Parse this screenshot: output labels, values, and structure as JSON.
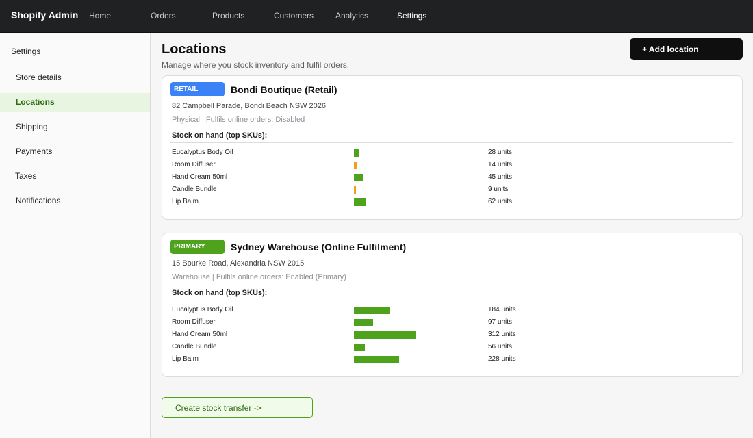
{
  "app": {
    "brand": "Shopify Admin"
  },
  "nav": [
    {
      "label": "Home",
      "active": false
    },
    {
      "label": "Orders",
      "active": false
    },
    {
      "label": "Products",
      "active": false
    },
    {
      "label": "Customers",
      "active": false
    },
    {
      "label": "Analytics",
      "active": false
    },
    {
      "label": "Settings",
      "active": true
    }
  ],
  "sidebar": {
    "heading": "Settings",
    "items": [
      {
        "label": "Store details",
        "active": false
      },
      {
        "label": "Locations",
        "active": true
      },
      {
        "label": "Shipping",
        "active": false
      },
      {
        "label": "Payments",
        "active": false
      },
      {
        "label": "Taxes",
        "active": false
      },
      {
        "label": "Notifications",
        "active": false
      }
    ]
  },
  "page": {
    "title": "Locations",
    "subtitle": "Manage where you stock inventory and fulfil orders.",
    "add_button_label": "+ Add location"
  },
  "colors": {
    "retail_badge": "#3b82f6",
    "primary_badge": "#4fa31c",
    "bar_ok": "#4fa31c",
    "bar_low": "#f0a01a"
  },
  "locations": [
    {
      "badge": "RETAIL",
      "badge_color": "#3b82f6",
      "name": "Bondi Boutique (Retail)",
      "address": "82 Campbell Parade, Bondi Beach NSW 2026",
      "meta": "Physical  |  Fulfils online orders: Disabled",
      "stock_heading": "Stock on hand (top SKUs):",
      "skus": [
        {
          "name": "Eucalyptus Body Oil",
          "units": 28,
          "units_label": "28 units",
          "low": false
        },
        {
          "name": "Room Diffuser",
          "units": 14,
          "units_label": "14 units",
          "low": true
        },
        {
          "name": "Hand Cream 50ml",
          "units": 45,
          "units_label": "45 units",
          "low": false
        },
        {
          "name": "Candle Bundle",
          "units": 9,
          "units_label": "9 units",
          "low": true
        },
        {
          "name": "Lip Balm",
          "units": 62,
          "units_label": "62 units",
          "low": false
        }
      ]
    },
    {
      "badge": "PRIMARY",
      "badge_color": "#4fa31c",
      "name": "Sydney Warehouse (Online Fulfilment)",
      "address": "15 Bourke Road, Alexandria NSW 2015",
      "meta": "Warehouse  |  Fulfils online orders: Enabled (Primary)",
      "stock_heading": "Stock on hand (top SKUs):",
      "skus": [
        {
          "name": "Eucalyptus Body Oil",
          "units": 184,
          "units_label": "184 units",
          "low": false
        },
        {
          "name": "Room Diffuser",
          "units": 97,
          "units_label": "97 units",
          "low": false
        },
        {
          "name": "Hand Cream 50ml",
          "units": 312,
          "units_label": "312 units",
          "low": false
        },
        {
          "name": "Candle Bundle",
          "units": 56,
          "units_label": "56 units",
          "low": false
        },
        {
          "name": "Lip Balm",
          "units": 228,
          "units_label": "228 units",
          "low": false
        }
      ]
    }
  ],
  "transfer_button_label": "Create stock transfer  ->"
}
